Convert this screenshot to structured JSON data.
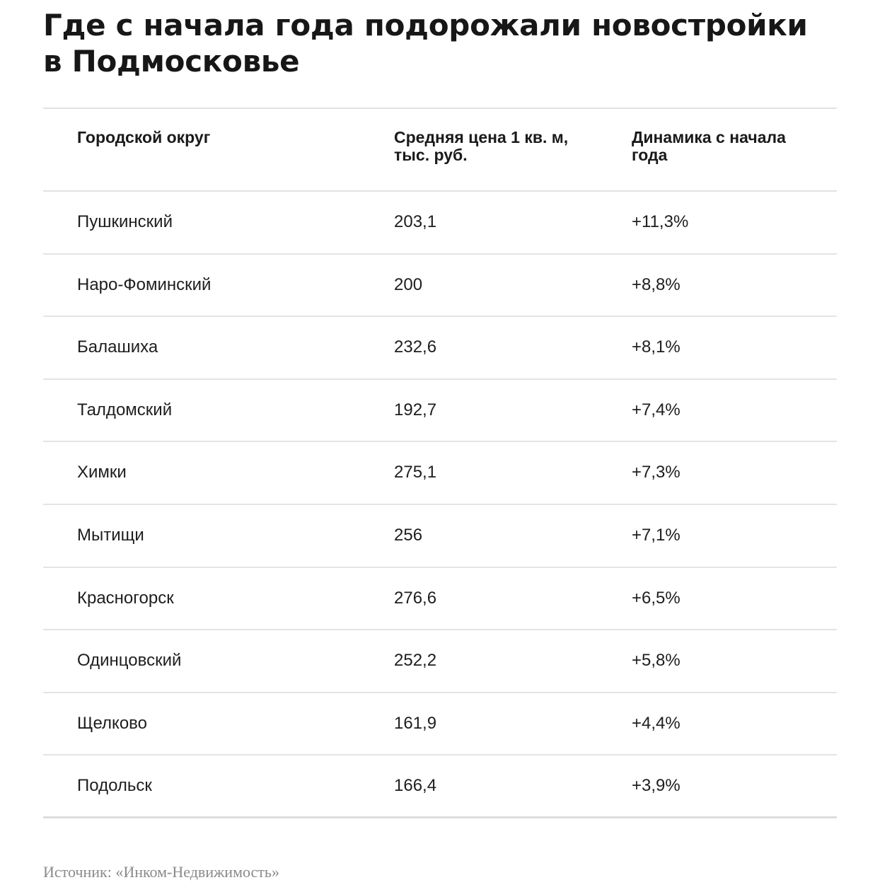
{
  "title": "Где с начала года подорожали новостройки в Подмосковье",
  "chart_data": {
    "type": "table",
    "title": "Где с начала года подорожали новостройки в Подмосковье",
    "columns": [
      "Городской округ",
      "Средняя цена 1 кв. м, тыс. руб.",
      "Динамика с начала года"
    ],
    "rows": [
      [
        "Пушкинский",
        "203,1",
        "+11,3%"
      ],
      [
        "Наро-Фоминский",
        "200",
        "+8,8%"
      ],
      [
        "Балашиха",
        "232,6",
        "+8,1%"
      ],
      [
        "Талдомский",
        "192,7",
        "+7,4%"
      ],
      [
        "Химки",
        "275,1",
        "+7,3%"
      ],
      [
        "Мытищи",
        "256",
        "+7,1%"
      ],
      [
        "Красногорск",
        "276,6",
        "+6,5%"
      ],
      [
        "Одинцовский",
        "252,2",
        "+5,8%"
      ],
      [
        "Щелково",
        "161,9",
        "+4,4%"
      ],
      [
        "Подольск",
        "166,4",
        "+3,9%"
      ]
    ]
  },
  "source": "Источник: «Инком-Недвижимость»"
}
